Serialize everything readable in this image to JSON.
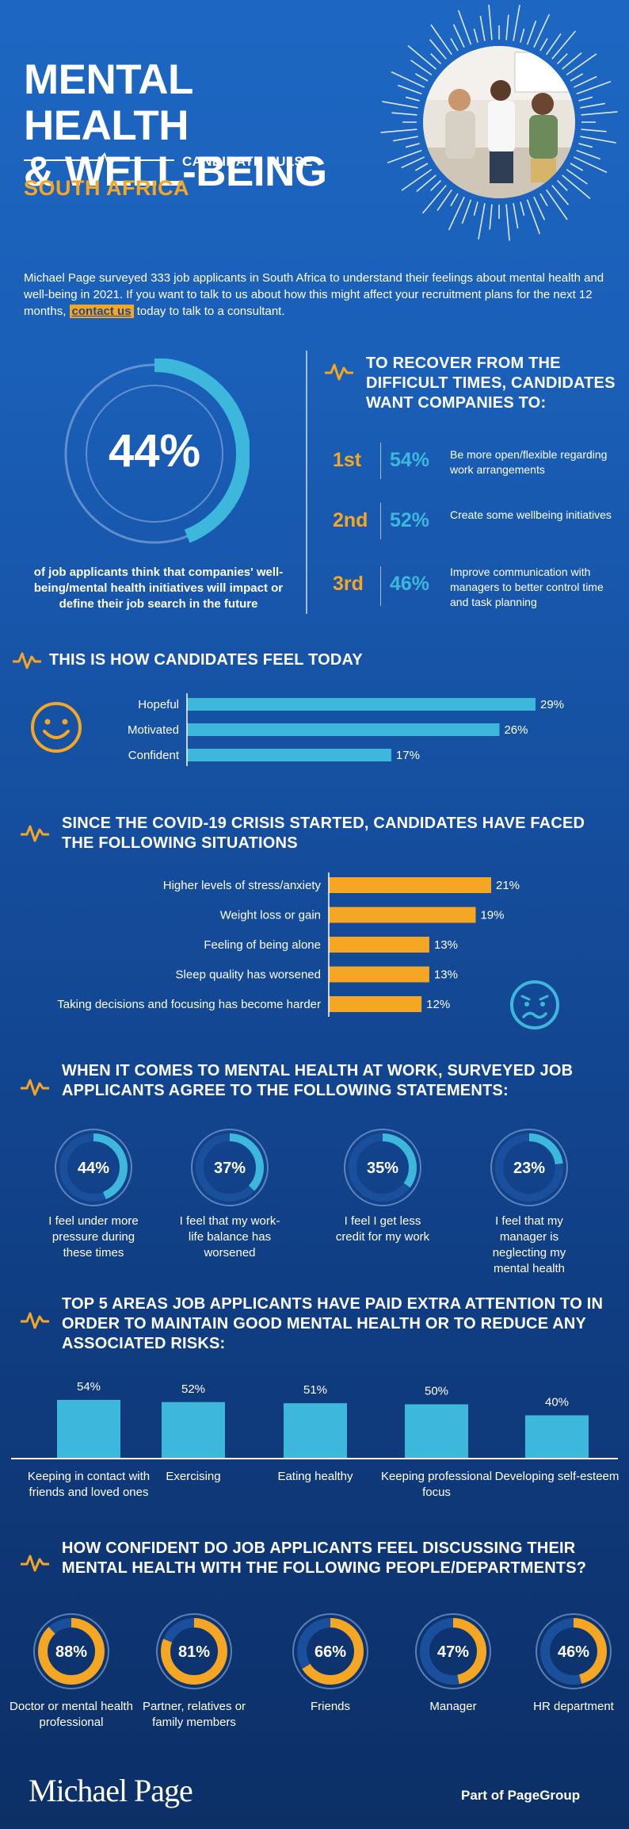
{
  "header": {
    "title_line1": "MENTAL HEALTH",
    "title_line2": "& WELL-BEING",
    "pulse_label": "CANDIDATE PULSE",
    "country": "SOUTH AFRICA"
  },
  "intro": {
    "text_before": "Michael Page surveyed 333 job applicants in South Africa to understand their feelings about mental health and well-being in 2021. If you want to talk to us about how this might affect your recruitment plans for the next 12 months, ",
    "link_text": "contact us",
    "text_after": " today to talk to a consultant."
  },
  "impact": {
    "percent_label": "44%",
    "percent_value": 44,
    "caption": "of job applicants think that companies' well-being/mental health initiatives will impact or define their job search in the future"
  },
  "recover": {
    "title": "TO RECOVER FROM THE DIFFICULT TIMES, CANDIDATES WANT COMPANIES TO:",
    "items": [
      {
        "rank": "1st",
        "pct": "54%",
        "desc": "Be more open/flexible regarding work arrangements"
      },
      {
        "rank": "2nd",
        "pct": "52%",
        "desc": "Create some wellbeing initiatives"
      },
      {
        "rank": "3rd",
        "pct": "46%",
        "desc": "Improve communication with managers to better control time and task planning"
      }
    ]
  },
  "feel_today": {
    "title": "THIS IS HOW CANDIDATES FEEL TODAY",
    "icon": "smiley-face-icon"
  },
  "situations": {
    "title": "SINCE THE COVID-19 CRISIS STARTED, CANDIDATES HAVE FACED THE FOLLOWING SITUATIONS",
    "icon": "worried-face-icon"
  },
  "statements": {
    "title": "WHEN IT COMES TO MENTAL HEALTH AT WORK, SURVEYED JOB APPLICANTS AGREE TO THE FOLLOWING STATEMENTS:",
    "items": [
      {
        "pct": "44%",
        "value": 44,
        "label": "I feel under more pressure during these times"
      },
      {
        "pct": "37%",
        "value": 37,
        "label": "I feel that my work-life balance has worsened"
      },
      {
        "pct": "35%",
        "value": 35,
        "label": "I feel I get less credit for my work"
      },
      {
        "pct": "23%",
        "value": 23,
        "label": "I feel that my manager is neglecting my mental health"
      }
    ]
  },
  "top5": {
    "title": "TOP 5 AREAS JOB APPLICANTS HAVE PAID EXTRA ATTENTION TO IN ORDER TO MAINTAIN GOOD MENTAL HEALTH OR TO REDUCE ANY ASSOCIATED RISKS:"
  },
  "confidence": {
    "title": "HOW CONFIDENT DO JOB APPLICANTS FEEL DISCUSSING THEIR MENTAL HEALTH WITH THE FOLLOWING PEOPLE/DEPARTMENTS?",
    "items": [
      {
        "pct": "88%",
        "value": 88,
        "label": "Doctor or mental health professional"
      },
      {
        "pct": "81%",
        "value": 81,
        "label": "Partner, relatives or family members"
      },
      {
        "pct": "66%",
        "value": 66,
        "label": "Friends"
      },
      {
        "pct": "47%",
        "value": 47,
        "label": "Manager"
      },
      {
        "pct": "46%",
        "value": 46,
        "label": "HR department"
      }
    ]
  },
  "footer": {
    "brand": "Michael Page",
    "group_prefix": "Part of ",
    "group_name": "PageGroup"
  },
  "colors": {
    "accent_orange": "#f5a623",
    "accent_cyan": "#3db8dc",
    "ring_track": "#8fb3e0"
  },
  "chart_data": [
    {
      "type": "bar",
      "orientation": "horizontal",
      "categories": [
        "Hopeful",
        "Motivated",
        "Confident"
      ],
      "values": [
        29,
        26,
        17
      ],
      "labels": [
        "29%",
        "26%",
        "17%"
      ],
      "color": "#3db8dc"
    },
    {
      "type": "bar",
      "orientation": "horizontal",
      "categories": [
        "Higher levels of stress/anxiety",
        "Weight loss or gain",
        "Feeling of being alone",
        "Sleep quality  has worsened",
        "Taking decisions and focusing has become harder"
      ],
      "values": [
        21,
        19,
        13,
        13,
        12
      ],
      "labels": [
        "21%",
        "19%",
        "13%",
        "13%",
        "12%"
      ],
      "color": "#f5a623"
    },
    {
      "type": "bar",
      "orientation": "vertical",
      "categories": [
        "Keeping in contact with friends and loved ones",
        "Exercising",
        "Eating healthy",
        "Keeping professional focus",
        "Developing self-esteem"
      ],
      "values": [
        54,
        52,
        51,
        50,
        40
      ],
      "labels": [
        "54%",
        "52%",
        "51%",
        "50%",
        "40%"
      ],
      "color": "#3db8dc"
    }
  ]
}
